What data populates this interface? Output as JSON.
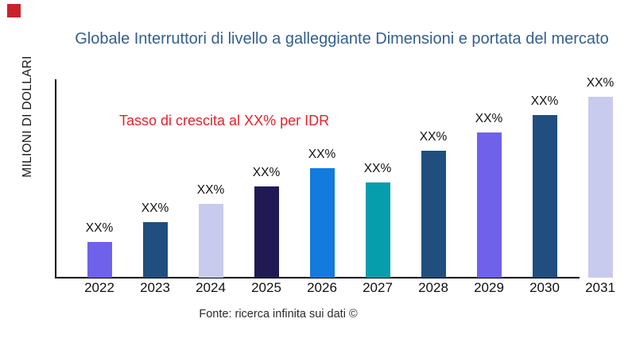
{
  "brand_mark": {
    "color": "#c8232c"
  },
  "colors": {
    "title": "#33608e",
    "annotation": "#e8222b",
    "axis": "#000000"
  },
  "chart_data": {
    "type": "bar",
    "title": "Globale Interruttori di livello a galleggiante Dimensioni e portata del mercato",
    "ylabel": "MILIONI DI DOLLARI",
    "xlabel": "",
    "categories": [
      "2022",
      "2023",
      "2024",
      "2025",
      "2026",
      "2027",
      "2028",
      "2029",
      "2030",
      "2031"
    ],
    "value_labels": [
      "XX%",
      "XX%",
      "XX%",
      "XX%",
      "XX%",
      "XX%",
      "XX%",
      "XX%",
      "XX%",
      "XX%"
    ],
    "values_relative_pct_of_axis": [
      18,
      28,
      37,
      46,
      55,
      48,
      64,
      73,
      82,
      91
    ],
    "bar_colors": [
      "#6f61ea",
      "#1f4e7f",
      "#c9cbee",
      "#201a54",
      "#137ade",
      "#069dad",
      "#1f4e7f",
      "#6f61ea",
      "#1f4e7f",
      "#c9cbee"
    ],
    "annotation": "Tasso di crescita al XX% per IDR",
    "source": "Fonte: ricerca infinita sui dati ©",
    "grid": false,
    "legend": false,
    "y_axis_tick_labels": "none"
  }
}
